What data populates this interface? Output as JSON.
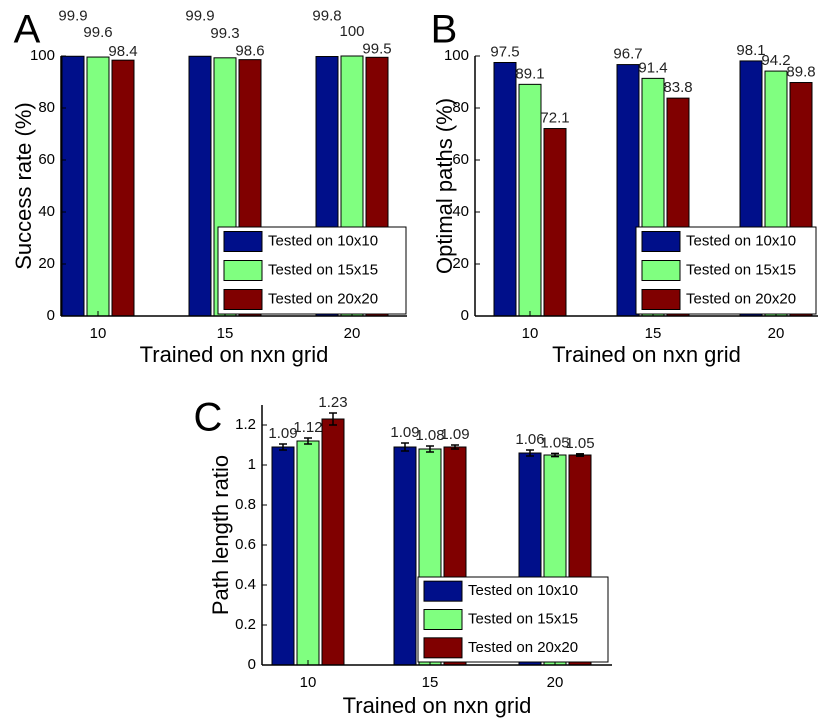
{
  "colors": {
    "series": [
      "#000f8a",
      "#80ff80",
      "#800000"
    ],
    "axis": "#000000",
    "background": "#ffffff"
  },
  "chart_data": [
    {
      "panel_label": "A",
      "type": "bar",
      "title": "",
      "xlabel": "Trained on nxn grid",
      "ylabel": "Success rate (%)",
      "categories": [
        "10",
        "15",
        "20"
      ],
      "ylim": [
        0,
        100
      ],
      "yticks": [
        "0",
        "20",
        "40",
        "60",
        "80",
        "100"
      ],
      "grid": false,
      "legend_position": "bottom-right",
      "series": [
        {
          "name": "Tested on 10x10",
          "values": [
            99.9,
            99.9,
            99.8
          ],
          "labels": [
            "99.9",
            "99.9",
            "99.8"
          ]
        },
        {
          "name": "Tested on 15x15",
          "values": [
            99.6,
            99.3,
            100
          ],
          "labels": [
            "99.6",
            "99.3",
            "100"
          ]
        },
        {
          "name": "Tested on 20x20",
          "values": [
            98.4,
            98.6,
            99.5
          ],
          "labels": [
            "98.4",
            "98.6",
            "99.5"
          ]
        }
      ]
    },
    {
      "panel_label": "B",
      "type": "bar",
      "title": "",
      "xlabel": "Trained on nxn grid",
      "ylabel": "Optimal paths (%)",
      "categories": [
        "10",
        "15",
        "20"
      ],
      "ylim": [
        0,
        100
      ],
      "yticks": [
        "0",
        "20",
        "40",
        "60",
        "80",
        "100"
      ],
      "grid": false,
      "legend_position": "bottom-right",
      "series": [
        {
          "name": "Tested on 10x10",
          "values": [
            97.5,
            96.7,
            98.1
          ],
          "labels": [
            "97.5",
            "96.7",
            "98.1"
          ]
        },
        {
          "name": "Tested on 15x15",
          "values": [
            89.1,
            91.4,
            94.2
          ],
          "labels": [
            "89.1",
            "91.4",
            "94.2"
          ]
        },
        {
          "name": "Tested on 20x20",
          "values": [
            72.1,
            83.8,
            89.8
          ],
          "labels": [
            "72.1",
            "83.8",
            "89.8"
          ]
        }
      ]
    },
    {
      "panel_label": "C",
      "type": "bar",
      "title": "",
      "xlabel": "Trained on nxn grid",
      "ylabel": "Path length ratio",
      "categories": [
        "10",
        "15",
        "20"
      ],
      "ylim": [
        0,
        1.3
      ],
      "yticks": [
        "0",
        "0.2",
        "0.4",
        "0.6",
        "0.8",
        "1",
        "1.2"
      ],
      "grid": false,
      "legend_position": "bottom-right",
      "series": [
        {
          "name": "Tested on 10x10",
          "values": [
            1.09,
            1.09,
            1.06
          ],
          "errors": [
            0.015,
            0.02,
            0.015
          ],
          "labels": [
            "1.09",
            "1.09",
            "1.06"
          ]
        },
        {
          "name": "Tested on 15x15",
          "values": [
            1.12,
            1.08,
            1.05
          ],
          "errors": [
            0.015,
            0.015,
            0.008
          ],
          "labels": [
            "1.12",
            "1.08",
            "1.05"
          ]
        },
        {
          "name": "Tested on 20x20",
          "values": [
            1.23,
            1.09,
            1.05
          ],
          "errors": [
            0.03,
            0.01,
            0.006
          ],
          "labels": [
            "1.23",
            "1.09",
            "1.05"
          ]
        }
      ]
    }
  ]
}
